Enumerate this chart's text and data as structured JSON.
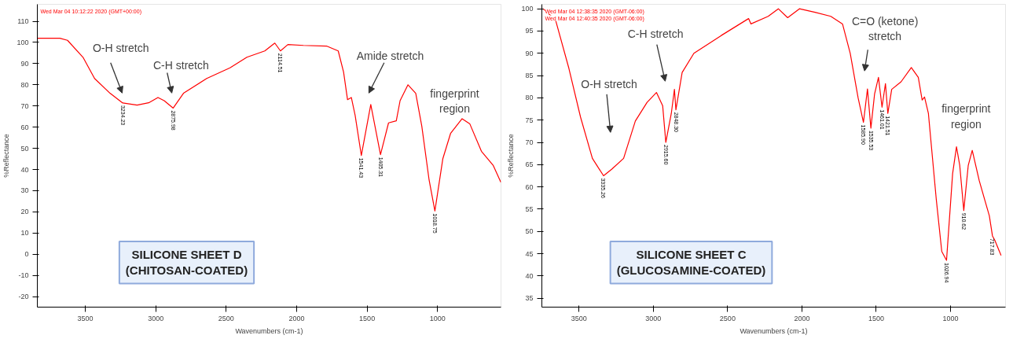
{
  "chart_data": [
    {
      "type": "line",
      "title": "SILICONE SHEET D (CHITOSAN-COATED)",
      "xlabel": "Wavenumbers (cm-1)",
      "ylabel": "%Reflectance",
      "grid": false,
      "xlim": [
        3840,
        550
      ],
      "xticks": [
        3500,
        3000,
        2500,
        2000,
        1500,
        1000
      ],
      "ylim": [
        -25,
        118
      ],
      "yticks": [
        -20,
        -10,
        0,
        10,
        20,
        30,
        40,
        50,
        60,
        70,
        80,
        90,
        100,
        110
      ],
      "annotations": [
        "Wed Mar 04 10:12:22 2020 (GMT+00:00)",
        "O-H stretch",
        "C-H stretch",
        "Amide stretch",
        "fingerprint region",
        {
          "text": "3234.23",
          "x": 3234,
          "y": 71.4
        },
        {
          "text": "2875.98",
          "x": 2876,
          "y": 69
        },
        {
          "text": "2114.51",
          "x": 2115,
          "y": 96
        },
        {
          "text": "1541.43",
          "x": 1541,
          "y": 46.6
        },
        {
          "text": "1405.31",
          "x": 1405,
          "y": 47
        },
        {
          "text": "1018.75",
          "x": 1019,
          "y": 20.4
        }
      ],
      "series": [
        {
          "color": "#ff0000",
          "x": [
            3840,
            3680,
            3626,
            3516,
            3434,
            3324,
            3234,
            3132,
            3050,
            2984,
            2940,
            2876,
            2803,
            2638,
            2473,
            2353,
            2226,
            2155,
            2115,
            2062,
            1952,
            1788,
            1705,
            1667,
            1639,
            1612,
            1585,
            1541,
            1474,
            1405,
            1348,
            1293,
            1266,
            1210,
            1155,
            1112,
            1060,
            1019,
            963,
            908,
            826,
            771,
            689,
            606,
            551
          ],
          "values": [
            102,
            102,
            101,
            93,
            83,
            76,
            71.4,
            70.4,
            71.5,
            74,
            72.5,
            69,
            76,
            83,
            88,
            93,
            96,
            99.7,
            96,
            99,
            98.6,
            98.3,
            96,
            86,
            73,
            74,
            65.6,
            46.6,
            70.7,
            47,
            62,
            63,
            72.5,
            80,
            76,
            60.5,
            35,
            20.4,
            45,
            57,
            64,
            61.5,
            48.6,
            42,
            34
          ]
        }
      ]
    },
    {
      "type": "line",
      "title": "SILICONE SHEET C (GLUCOSAMINE-COATED)",
      "xlabel": "Wavenumbers (cm-1)",
      "ylabel": "%Reflectance",
      "grid": false,
      "xlim": [
        3750,
        630
      ],
      "xticks": [
        3500,
        3000,
        2500,
        2000,
        1500,
        1000
      ],
      "ylim": [
        33,
        101
      ],
      "yticks": [
        35,
        40,
        45,
        50,
        55,
        60,
        65,
        70,
        75,
        80,
        85,
        90,
        95,
        100
      ],
      "annotations": [
        "Wed Mar 04 12:38:35 2020 (GMT-06:00)",
        "Wed Mar 04 12:40:35 2020 (GMT-06:00)",
        "O-H stretch",
        "C-H stretch",
        "C=O (ketone) stretch",
        "fingerprint region",
        {
          "text": "3335.26",
          "x": 3335,
          "y": 62.5
        },
        {
          "text": "2915.60",
          "x": 2916,
          "y": 70
        },
        {
          "text": "2848.30",
          "x": 2848,
          "y": 77.3
        },
        {
          "text": "1585.90",
          "x": 1586,
          "y": 74.5
        },
        {
          "text": "1535.53",
          "x": 1536,
          "y": 73.2
        },
        {
          "text": "1461.01",
          "x": 1461,
          "y": 77.9
        },
        {
          "text": "1421.51",
          "x": 1422,
          "y": 76.5
        },
        {
          "text": "1026.94",
          "x": 1027,
          "y": 43.5
        },
        {
          "text": "910.62",
          "x": 911,
          "y": 54.7
        },
        {
          "text": "717.83",
          "x": 718,
          "y": 49
        }
      ],
      "series": [
        {
          "color": "#ff0000",
          "x": [
            3742,
            3658,
            3568,
            3490,
            3410,
            3335,
            3279,
            3200,
            3121,
            3042,
            2979,
            2937,
            2916,
            2879,
            2858,
            2848,
            2806,
            2727,
            2543,
            2359,
            2343,
            2227,
            2159,
            2096,
            2017,
            1912,
            1806,
            1727,
            1675,
            1622,
            1586,
            1559,
            1536,
            1511,
            1485,
            1461,
            1438,
            1422,
            1396,
            1333,
            1264,
            1217,
            1191,
            1175,
            1149,
            1096,
            1059,
            1027,
            986,
            960,
            938,
            911,
            881,
            854,
            807,
            739,
            718,
            702,
            660
          ],
          "values": [
            100,
            97.5,
            86.6,
            75.7,
            66.4,
            62.5,
            64,
            66.4,
            74.8,
            79,
            81.2,
            78.2,
            70,
            76.5,
            81.9,
            77.3,
            85.7,
            90,
            94,
            97.8,
            96.6,
            98.3,
            100,
            98,
            100,
            99.2,
            98.3,
            96.6,
            90,
            80,
            74.5,
            82,
            73.2,
            80.9,
            84.6,
            77.9,
            83.2,
            76.5,
            81.9,
            83.6,
            86.8,
            84.6,
            79.5,
            80.2,
            76.5,
            57.2,
            45.5,
            43.5,
            63,
            69,
            64.8,
            54.7,
            64.8,
            68.2,
            61.4,
            53.5,
            49,
            48,
            44.6
          ]
        }
      ]
    }
  ]
}
